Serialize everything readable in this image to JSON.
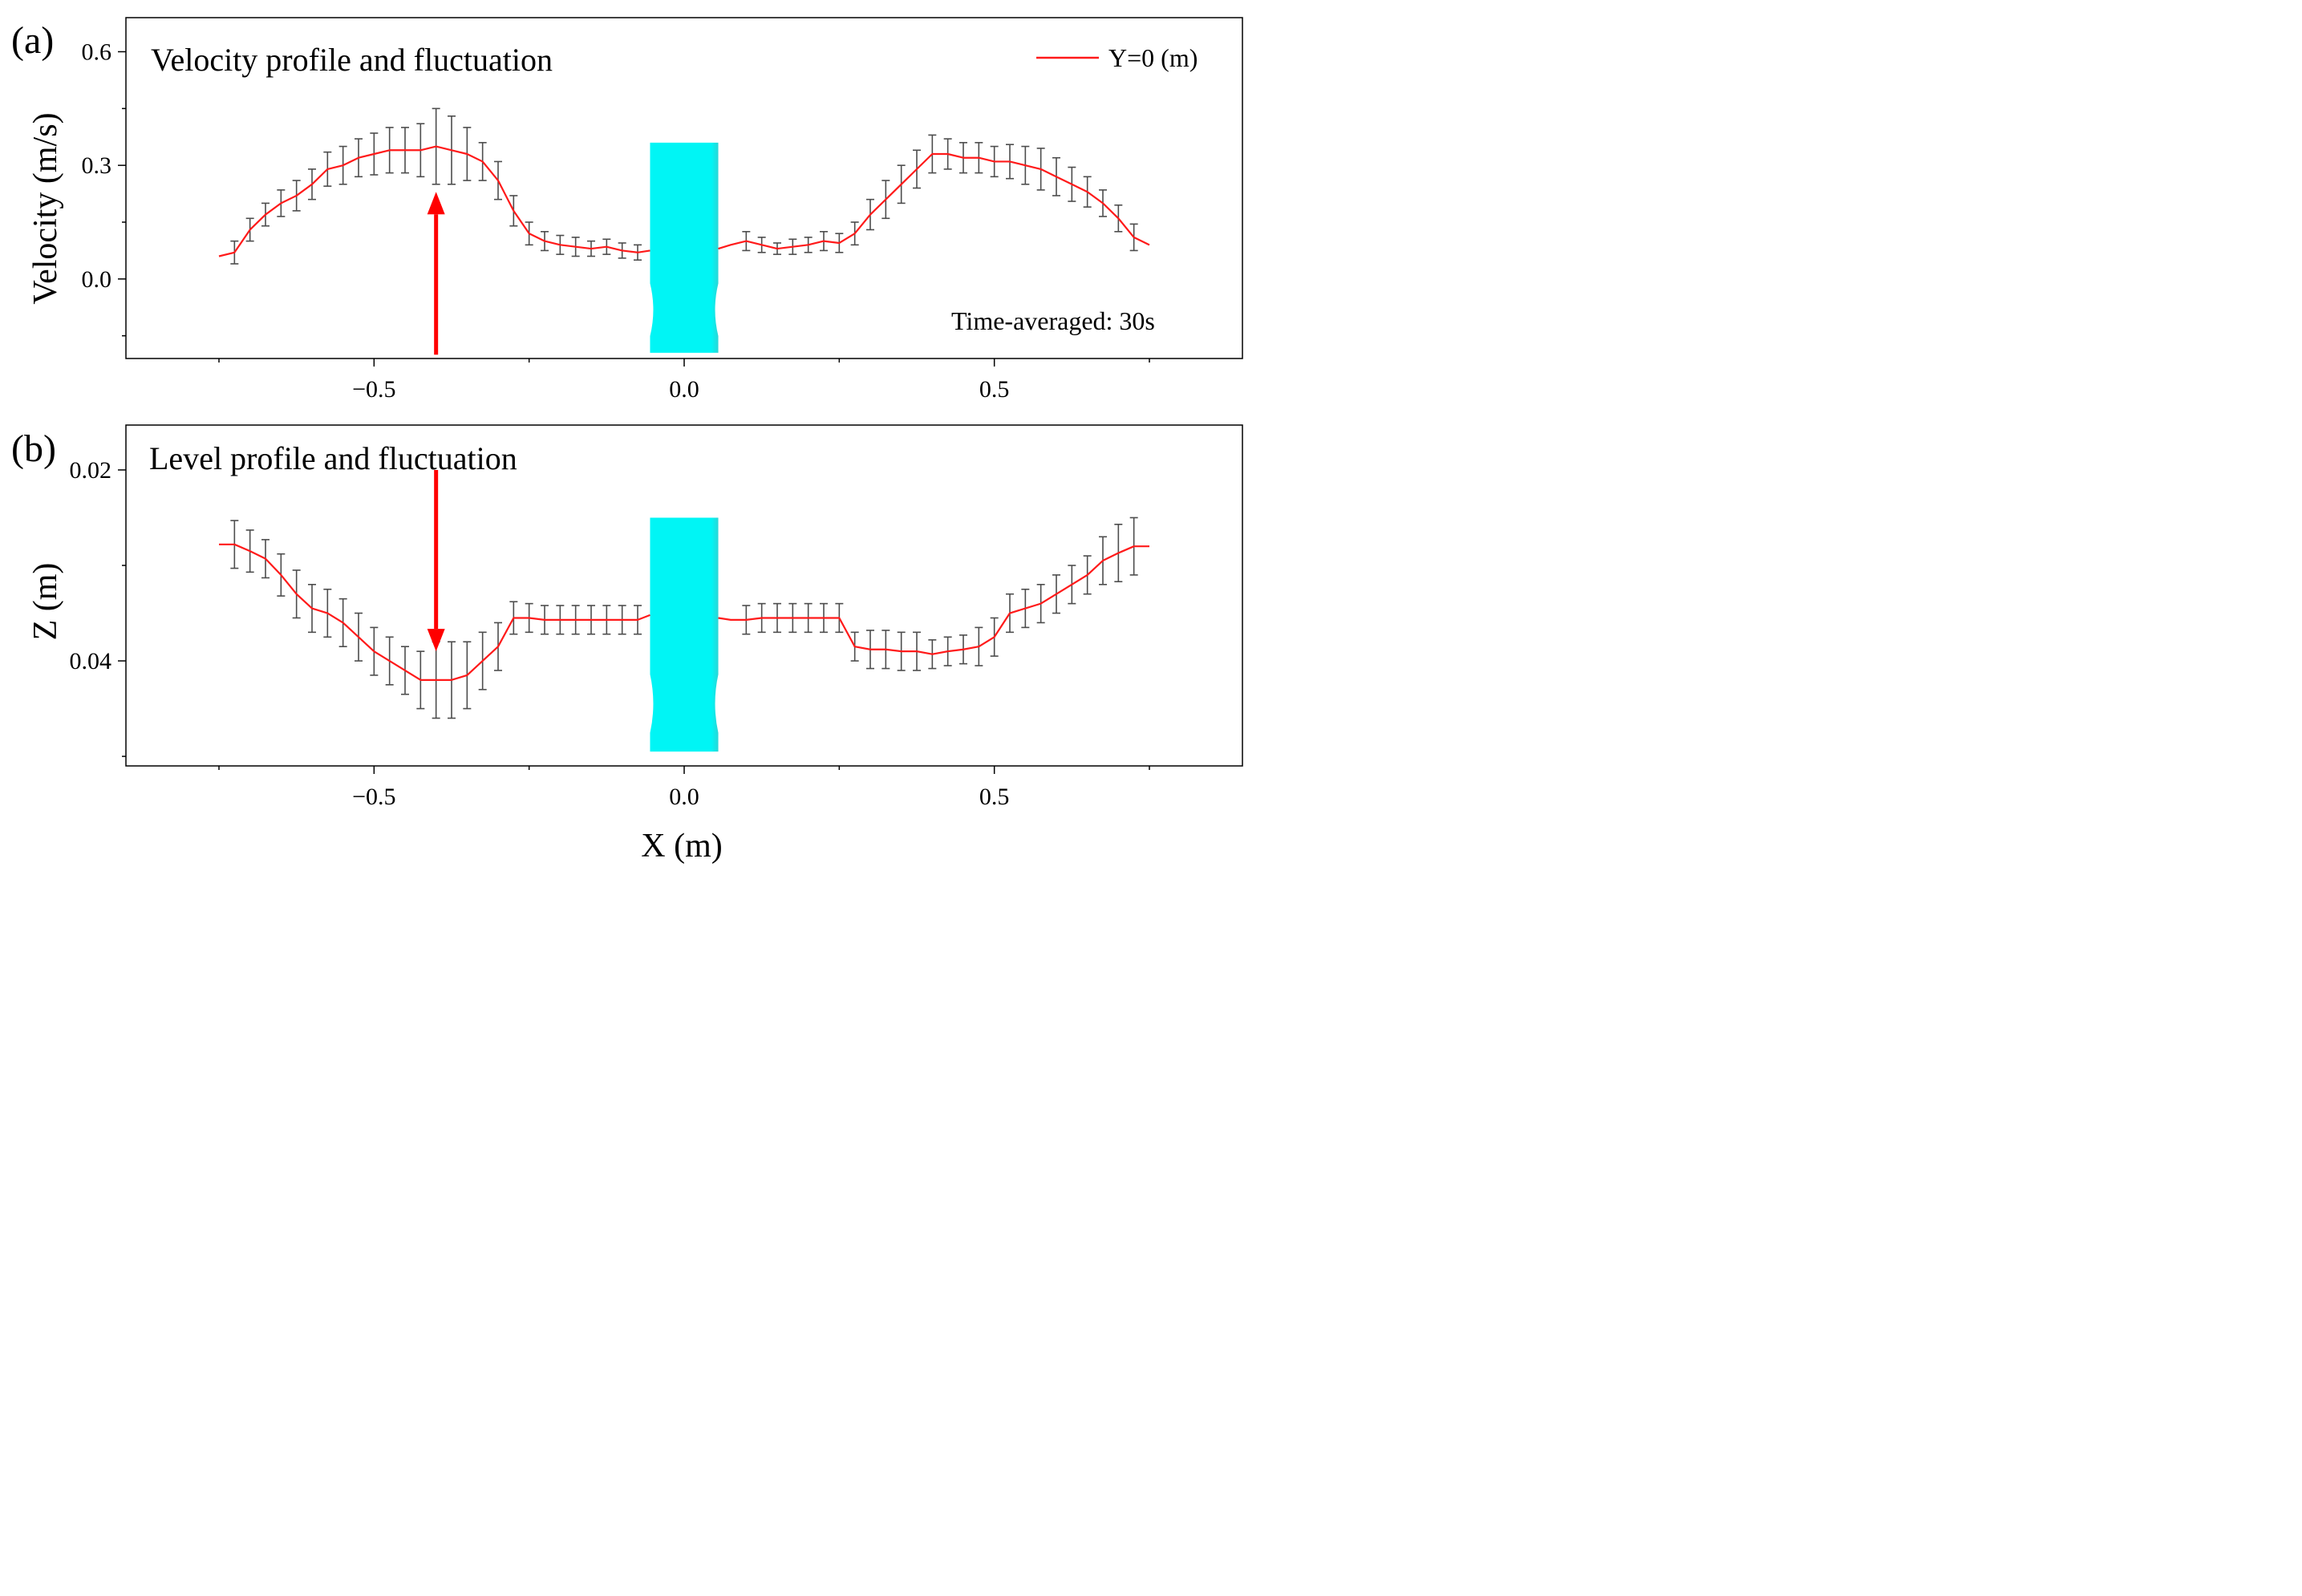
{
  "colors": {
    "line": "#ff1a1a",
    "errorbar": "#4d4d4d",
    "nozzle": "#00f5f5",
    "arrow": "#ff0000",
    "axis": "#000000"
  },
  "chart_data": [
    {
      "panel_label": "(a)",
      "type": "line",
      "title": "Velocity profile and fluctuation",
      "xlabel": "",
      "ylabel": "Velocity (m/s)",
      "xlim": [
        -0.9,
        0.9
      ],
      "ylim": [
        -0.21,
        0.69
      ],
      "y_inverted": false,
      "xticks": [
        -0.5,
        0.0,
        0.5
      ],
      "xtick_labels": [
        "−0.5",
        "0.0",
        "0.5"
      ],
      "yticks": [
        0.0,
        0.3,
        0.6
      ],
      "ytick_labels": [
        "0.0",
        "0.3",
        "0.6"
      ],
      "legend": {
        "label": "Y=0 (m)",
        "placement": "top-right"
      },
      "annotation": "Time-averaged: 30s",
      "arrow": {
        "x": -0.4,
        "from_y": -0.2,
        "to_y": 0.23,
        "direction": "up"
      },
      "nozzle": {
        "x_from": -0.055,
        "x_to": 0.055,
        "y_from": -0.195,
        "y_to": 0.36
      },
      "series": [
        {
          "name": "Y=0 (m)",
          "x": [
            -0.75,
            -0.725,
            -0.7,
            -0.675,
            -0.65,
            -0.625,
            -0.6,
            -0.575,
            -0.55,
            -0.525,
            -0.5,
            -0.475,
            -0.45,
            -0.425,
            -0.4,
            -0.375,
            -0.35,
            -0.325,
            -0.3,
            -0.275,
            -0.25,
            -0.225,
            -0.2,
            -0.175,
            -0.15,
            -0.125,
            -0.1,
            -0.075,
            -0.055,
            null,
            0.055,
            0.075,
            0.1,
            0.125,
            0.15,
            0.175,
            0.2,
            0.225,
            0.25,
            0.275,
            0.3,
            0.325,
            0.35,
            0.375,
            0.4,
            0.425,
            0.45,
            0.475,
            0.5,
            0.525,
            0.55,
            0.575,
            0.6,
            0.625,
            0.65,
            0.675,
            0.7,
            0.725,
            0.75
          ],
          "y": [
            0.06,
            0.07,
            0.13,
            0.17,
            0.2,
            0.22,
            0.25,
            0.29,
            0.3,
            0.32,
            0.33,
            0.34,
            0.34,
            0.34,
            0.35,
            0.34,
            0.33,
            0.31,
            0.26,
            0.18,
            0.12,
            0.1,
            0.09,
            0.085,
            0.08,
            0.085,
            0.075,
            0.07,
            0.075,
            null,
            0.08,
            0.09,
            0.1,
            0.09,
            0.08,
            0.085,
            0.09,
            0.1,
            0.095,
            0.12,
            0.17,
            0.21,
            0.25,
            0.29,
            0.33,
            0.33,
            0.32,
            0.32,
            0.31,
            0.31,
            0.3,
            0.29,
            0.27,
            0.25,
            0.23,
            0.2,
            0.16,
            0.11,
            0.09
          ],
          "err_x": [
            -0.725,
            -0.7,
            -0.675,
            -0.65,
            -0.625,
            -0.6,
            -0.575,
            -0.55,
            -0.525,
            -0.5,
            -0.475,
            -0.45,
            -0.425,
            -0.4,
            -0.375,
            -0.35,
            -0.325,
            -0.3,
            -0.275,
            -0.25,
            -0.225,
            -0.2,
            -0.175,
            -0.15,
            -0.125,
            -0.1,
            -0.075,
            0.1,
            0.125,
            0.15,
            0.175,
            0.2,
            0.225,
            0.25,
            0.275,
            0.3,
            0.325,
            0.35,
            0.375,
            0.4,
            0.425,
            0.45,
            0.475,
            0.5,
            0.525,
            0.55,
            0.575,
            0.6,
            0.625,
            0.65,
            0.675,
            0.7,
            0.725
          ],
          "err_y": [
            0.07,
            0.13,
            0.17,
            0.2,
            0.22,
            0.25,
            0.29,
            0.3,
            0.32,
            0.33,
            0.34,
            0.34,
            0.34,
            0.35,
            0.34,
            0.33,
            0.31,
            0.26,
            0.18,
            0.12,
            0.1,
            0.09,
            0.085,
            0.08,
            0.085,
            0.075,
            0.07,
            0.1,
            0.09,
            0.08,
            0.085,
            0.09,
            0.1,
            0.095,
            0.12,
            0.17,
            0.21,
            0.25,
            0.29,
            0.33,
            0.33,
            0.32,
            0.32,
            0.31,
            0.31,
            0.3,
            0.29,
            0.27,
            0.25,
            0.23,
            0.2,
            0.16,
            0.11
          ],
          "err_half": [
            0.03,
            0.03,
            0.03,
            0.035,
            0.04,
            0.04,
            0.045,
            0.05,
            0.05,
            0.055,
            0.06,
            0.06,
            0.07,
            0.1,
            0.09,
            0.07,
            0.05,
            0.05,
            0.04,
            0.03,
            0.025,
            0.025,
            0.025,
            0.02,
            0.02,
            0.02,
            0.02,
            0.025,
            0.02,
            0.015,
            0.02,
            0.02,
            0.025,
            0.025,
            0.03,
            0.04,
            0.05,
            0.05,
            0.05,
            0.05,
            0.04,
            0.04,
            0.04,
            0.04,
            0.045,
            0.05,
            0.055,
            0.05,
            0.045,
            0.04,
            0.035,
            0.035,
            0.035
          ]
        }
      ]
    },
    {
      "panel_label": "(b)",
      "type": "line",
      "title": "Level profile and fluctuation",
      "xlabel": "X (m)",
      "ylabel": "Z (m)",
      "xlim": [
        -0.9,
        0.9
      ],
      "ylim": [
        0.051,
        0.0153
      ],
      "y_inverted": true,
      "xticks": [
        -0.5,
        0.0,
        0.5
      ],
      "xtick_labels": [
        "−0.5",
        "0.0",
        "0.5"
      ],
      "yticks": [
        0.02,
        0.04
      ],
      "ytick_labels": [
        "0.02",
        "0.04"
      ],
      "arrow": {
        "x": -0.4,
        "from_y": 0.02,
        "to_y": 0.039,
        "direction": "down"
      },
      "nozzle": {
        "x_from": -0.055,
        "x_to": 0.055,
        "y_from": 0.025,
        "y_to": 0.0495
      },
      "series": [
        {
          "name": "Y=0 (m)",
          "x": [
            -0.75,
            -0.725,
            -0.7,
            -0.675,
            -0.65,
            -0.625,
            -0.6,
            -0.575,
            -0.55,
            -0.525,
            -0.5,
            -0.475,
            -0.45,
            -0.425,
            -0.4,
            -0.375,
            -0.35,
            -0.325,
            -0.3,
            -0.275,
            -0.25,
            -0.225,
            -0.2,
            -0.175,
            -0.15,
            -0.125,
            -0.1,
            -0.075,
            -0.055,
            null,
            0.055,
            0.075,
            0.1,
            0.125,
            0.15,
            0.175,
            0.2,
            0.225,
            0.25,
            0.275,
            0.3,
            0.325,
            0.35,
            0.375,
            0.4,
            0.425,
            0.45,
            0.475,
            0.5,
            0.525,
            0.55,
            0.575,
            0.6,
            0.625,
            0.65,
            0.675,
            0.7,
            0.725,
            0.75
          ],
          "y": [
            0.0278,
            0.0278,
            0.0285,
            0.0293,
            0.031,
            0.033,
            0.0345,
            0.035,
            0.036,
            0.0375,
            0.039,
            0.04,
            0.041,
            0.042,
            0.042,
            0.042,
            0.0415,
            0.04,
            0.0385,
            0.0355,
            0.0355,
            0.0357,
            0.0357,
            0.0357,
            0.0357,
            0.0357,
            0.0357,
            0.0357,
            0.0352,
            null,
            0.0355,
            0.0357,
            0.0357,
            0.0355,
            0.0355,
            0.0355,
            0.0355,
            0.0355,
            0.0355,
            0.0385,
            0.0388,
            0.0388,
            0.039,
            0.039,
            0.0393,
            0.039,
            0.0388,
            0.0385,
            0.0375,
            0.035,
            0.0345,
            0.034,
            0.033,
            0.032,
            0.031,
            0.0295,
            0.0287,
            0.028,
            0.028
          ],
          "err_x": [
            -0.725,
            -0.7,
            -0.675,
            -0.65,
            -0.625,
            -0.6,
            -0.575,
            -0.55,
            -0.525,
            -0.5,
            -0.475,
            -0.45,
            -0.425,
            -0.4,
            -0.375,
            -0.35,
            -0.325,
            -0.3,
            -0.275,
            -0.25,
            -0.225,
            -0.2,
            -0.175,
            -0.15,
            -0.125,
            -0.1,
            -0.075,
            0.1,
            0.125,
            0.15,
            0.175,
            0.2,
            0.225,
            0.25,
            0.275,
            0.3,
            0.325,
            0.35,
            0.375,
            0.4,
            0.425,
            0.45,
            0.475,
            0.5,
            0.525,
            0.55,
            0.575,
            0.6,
            0.625,
            0.65,
            0.675,
            0.7,
            0.725
          ],
          "err_y": [
            0.0278,
            0.0285,
            0.0293,
            0.031,
            0.033,
            0.0345,
            0.035,
            0.036,
            0.0375,
            0.039,
            0.04,
            0.041,
            0.042,
            0.042,
            0.042,
            0.0415,
            0.04,
            0.0385,
            0.0355,
            0.0355,
            0.0357,
            0.0357,
            0.0357,
            0.0357,
            0.0357,
            0.0357,
            0.0357,
            0.0357,
            0.0355,
            0.0355,
            0.0355,
            0.0355,
            0.0355,
            0.0355,
            0.0385,
            0.0388,
            0.0388,
            0.039,
            0.039,
            0.0393,
            0.039,
            0.0388,
            0.0385,
            0.0375,
            0.035,
            0.0345,
            0.034,
            0.033,
            0.032,
            0.031,
            0.0295,
            0.0287,
            0.028
          ],
          "err_half": [
            0.0025,
            0.0022,
            0.002,
            0.0022,
            0.0025,
            0.0025,
            0.0025,
            0.0025,
            0.0025,
            0.0025,
            0.0025,
            0.0025,
            0.003,
            0.004,
            0.004,
            0.0035,
            0.003,
            0.0025,
            0.0017,
            0.0015,
            0.0015,
            0.0015,
            0.0015,
            0.0015,
            0.0015,
            0.0015,
            0.0015,
            0.0015,
            0.0015,
            0.0015,
            0.0015,
            0.0015,
            0.0015,
            0.0015,
            0.0015,
            0.002,
            0.002,
            0.002,
            0.002,
            0.0015,
            0.0015,
            0.0015,
            0.002,
            0.002,
            0.002,
            0.002,
            0.002,
            0.002,
            0.002,
            0.002,
            0.0025,
            0.003,
            0.003
          ]
        }
      ]
    }
  ]
}
